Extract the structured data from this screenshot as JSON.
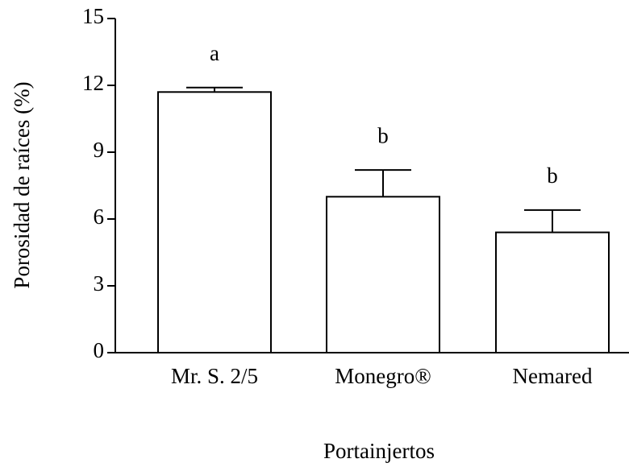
{
  "chart_data": {
    "type": "bar",
    "ylabel": "Porosidad de raíces (%)",
    "xlabel": "Portainjertos",
    "categories": [
      "Mr. S. 2/5",
      "Monegro®",
      "Nemared"
    ],
    "values": [
      11.7,
      7.0,
      5.4
    ],
    "errors": [
      0.2,
      1.2,
      1.0
    ],
    "annotations": [
      "a",
      "b",
      "b"
    ],
    "color": "#ffffff",
    "ylim": [
      0,
      15
    ],
    "yticks": [
      0,
      3,
      6,
      9,
      12,
      15
    ],
    "grid": false
  }
}
